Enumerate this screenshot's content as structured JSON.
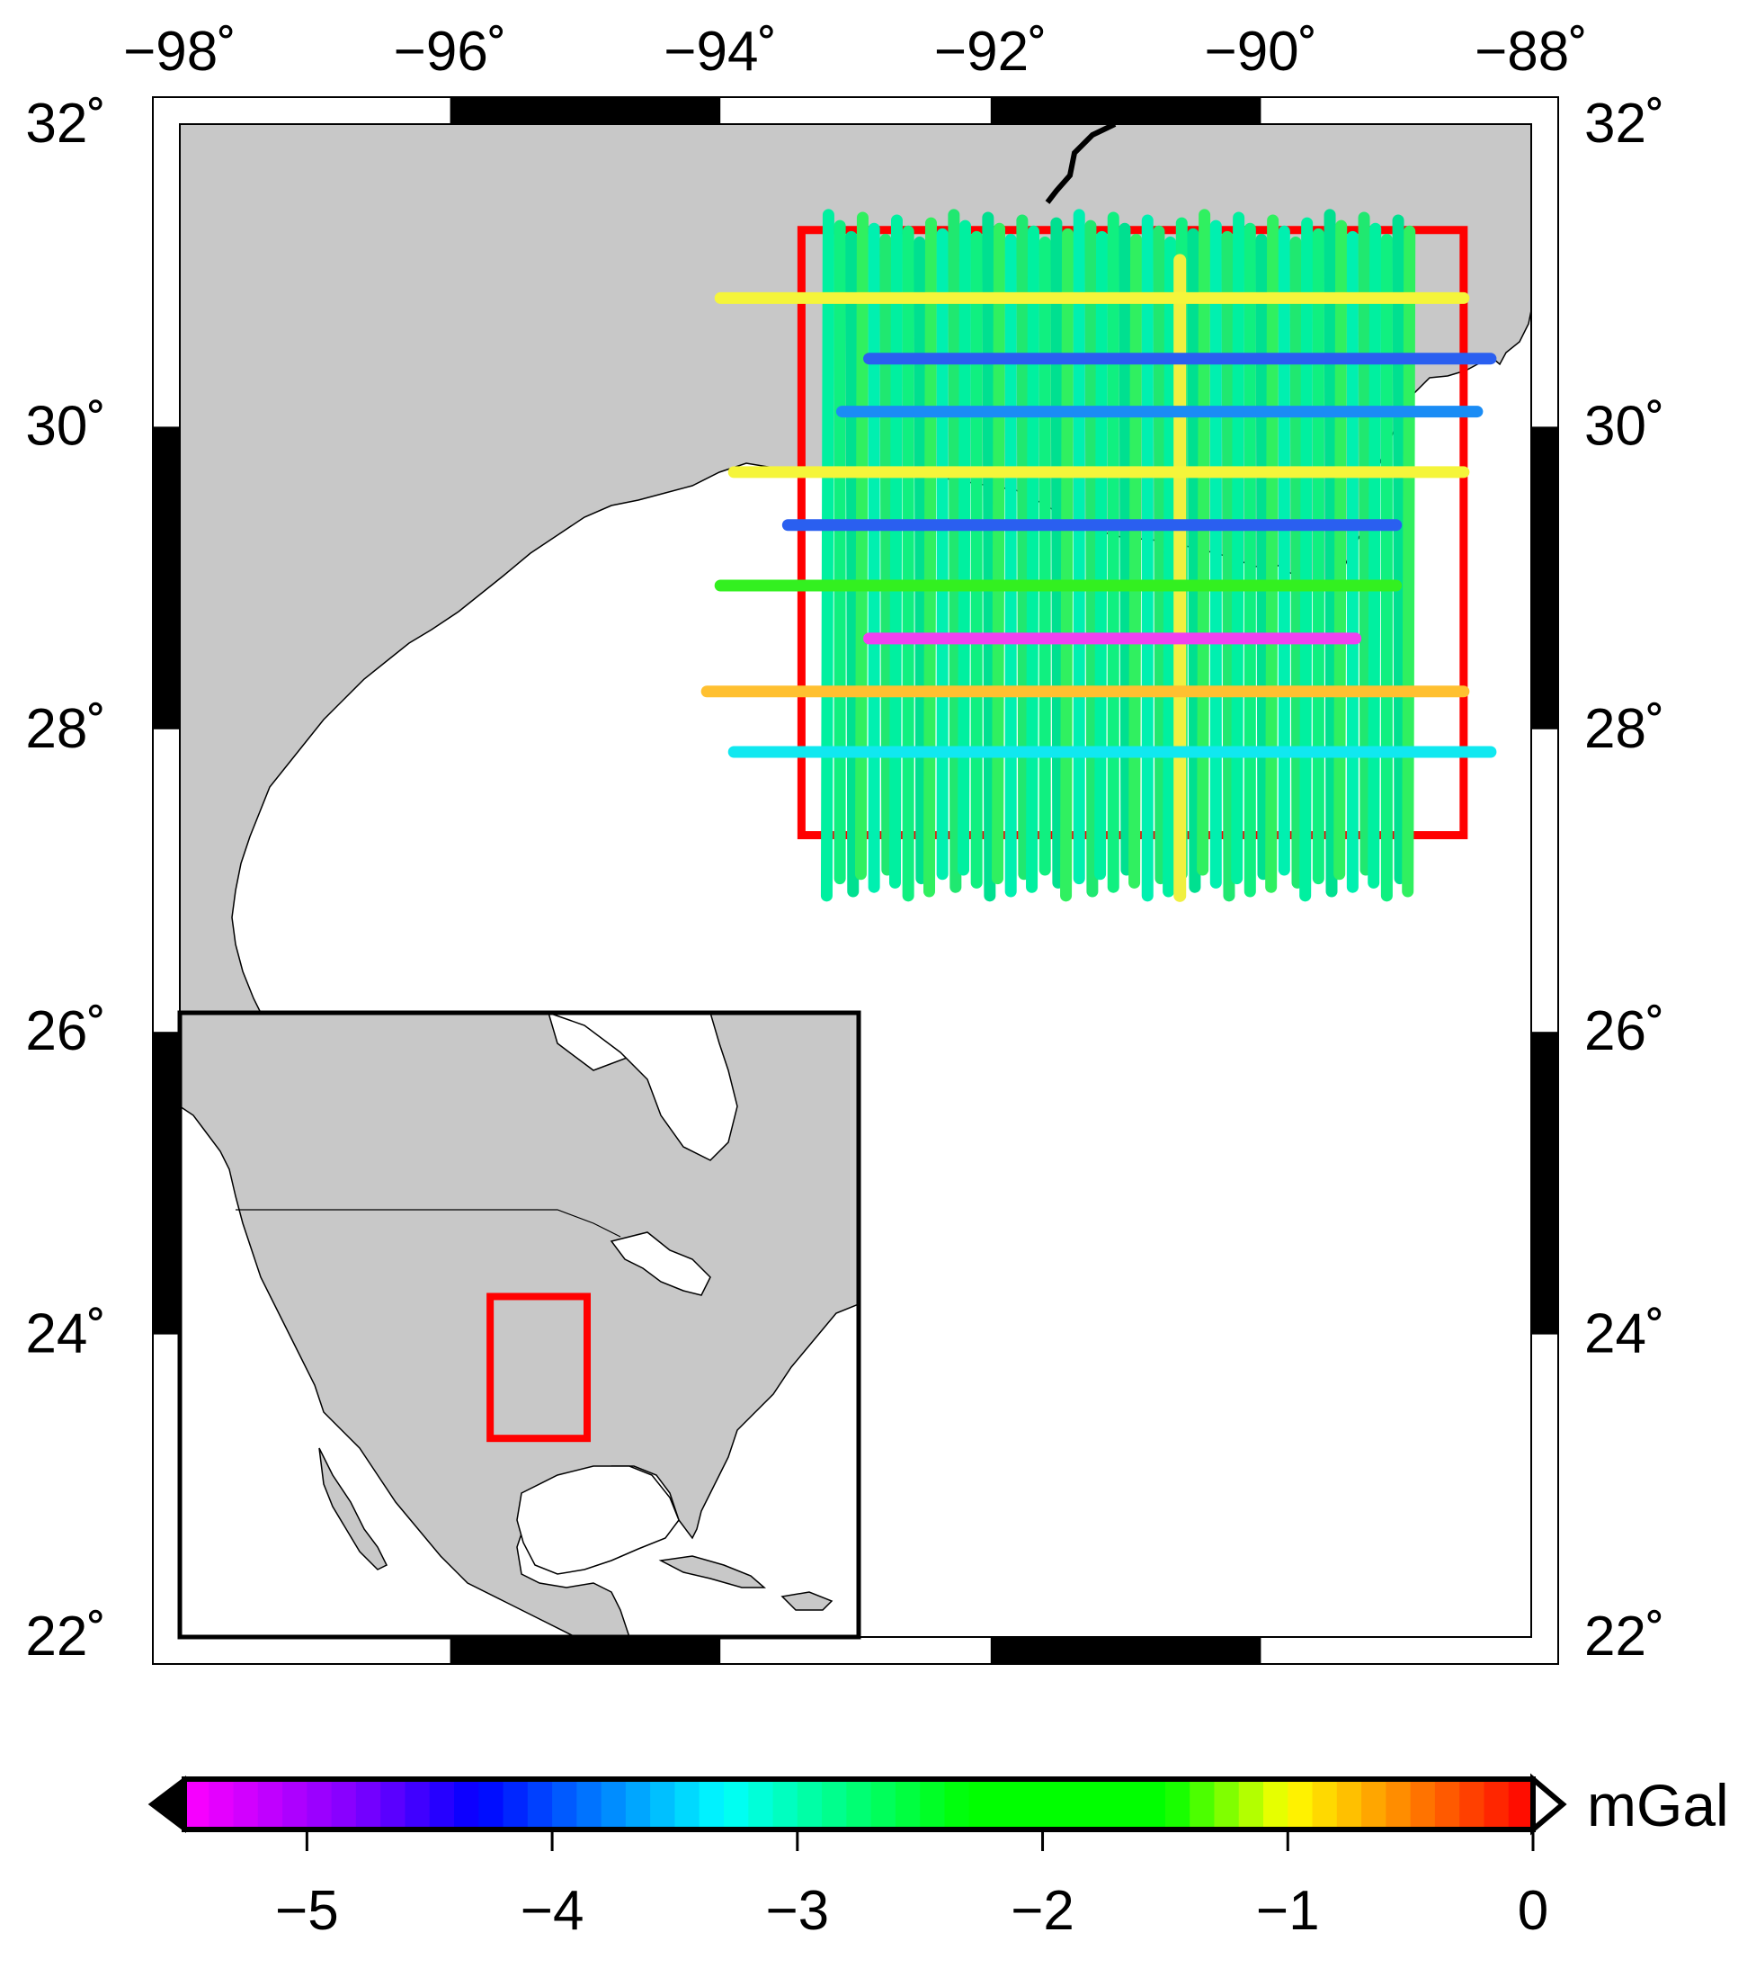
{
  "map": {
    "lon_range": [
      -98,
      -88
    ],
    "lat_range": [
      22,
      32
    ],
    "lon_ticks": [
      -98,
      -96,
      -94,
      -92,
      -90,
      -88
    ],
    "lat_ticks": [
      22,
      24,
      26,
      28,
      30,
      32
    ],
    "lon_labels": [
      "−98˚",
      "−96˚",
      "−94˚",
      "−92˚",
      "−90˚",
      "−88˚"
    ],
    "lat_labels": [
      "22˚",
      "24˚",
      "26˚",
      "28˚",
      "30˚",
      "32˚"
    ],
    "land_color": "#c8c8c8",
    "water_color": "#ffffff",
    "study_box_color": "#ff0000",
    "study_box": {
      "lon": [
        -93.4,
        -88.5
      ],
      "lat": [
        27.3,
        31.3
      ]
    },
    "survey_lines": {
      "ns_lon_min": -93.2,
      "ns_lon_max": -88.9,
      "ns_line_count": 52,
      "ns_lat_min": 26.9,
      "ns_lat_max": 31.4,
      "ns_colors": [
        "#00f0a0",
        "#10f080",
        "#00e090",
        "#30f060",
        "#00f0b0",
        "#20e870"
      ],
      "ns_highlight": {
        "lon": -90.6,
        "color": "#f0f040"
      },
      "ew_lines": [
        {
          "lat": 30.85,
          "lon": [
            -94.0,
            -88.5
          ],
          "color": "#f5f53a",
          "value": -1.1
        },
        {
          "lat": 30.45,
          "lon": [
            -92.9,
            -88.3
          ],
          "color": "#2a5ff0",
          "value": -4.0
        },
        {
          "lat": 30.1,
          "lon": [
            -93.1,
            -88.4
          ],
          "color": "#1a8cf5",
          "value": -3.8
        },
        {
          "lat": 29.7,
          "lon": [
            -93.9,
            -88.5
          ],
          "color": "#f5f53a",
          "value": -1.1
        },
        {
          "lat": 29.35,
          "lon": [
            -93.5,
            -89.0
          ],
          "color": "#2a5ff0",
          "value": -4.0
        },
        {
          "lat": 28.95,
          "lon": [
            -94.0,
            -89.0
          ],
          "color": "#33f020",
          "value": -1.8
        },
        {
          "lat": 28.6,
          "lon": [
            -92.9,
            -89.3
          ],
          "color": "#f040f0",
          "value": -5.4
        },
        {
          "lat": 28.25,
          "lon": [
            -94.1,
            -88.5
          ],
          "color": "#ffc030",
          "value": -0.7
        },
        {
          "lat": 27.85,
          "lon": [
            -93.9,
            -88.3
          ],
          "color": "#10e8f0",
          "value": -3.3
        }
      ]
    }
  },
  "inset": {
    "lon_range": [
      -130,
      -60
    ],
    "lat_range": [
      8,
      52
    ],
    "study_box": {
      "lon": [
        -98,
        -88
      ],
      "lat": [
        22,
        32
      ]
    }
  },
  "colorbar": {
    "min": -5.5,
    "max": 0,
    "ticks": [
      -5,
      -4,
      -3,
      -2,
      -1,
      0
    ],
    "tick_labels": [
      "−5",
      "−4",
      "−3",
      "−2",
      "−1",
      "0"
    ],
    "unit": "mGal",
    "stops": [
      {
        "v": -5.5,
        "c": "#ff00ff"
      },
      {
        "v": -4.8,
        "c": "#8000ff"
      },
      {
        "v": -4.3,
        "c": "#0000ff"
      },
      {
        "v": -3.8,
        "c": "#0080ff"
      },
      {
        "v": -3.3,
        "c": "#00ffff"
      },
      {
        "v": -2.8,
        "c": "#00ff80"
      },
      {
        "v": -2.3,
        "c": "#00ff00"
      },
      {
        "v": -1.5,
        "c": "#00ff00"
      },
      {
        "v": -1.0,
        "c": "#ffff00"
      },
      {
        "v": -0.5,
        "c": "#ff8000"
      },
      {
        "v": 0.0,
        "c": "#ff0000"
      }
    ]
  }
}
